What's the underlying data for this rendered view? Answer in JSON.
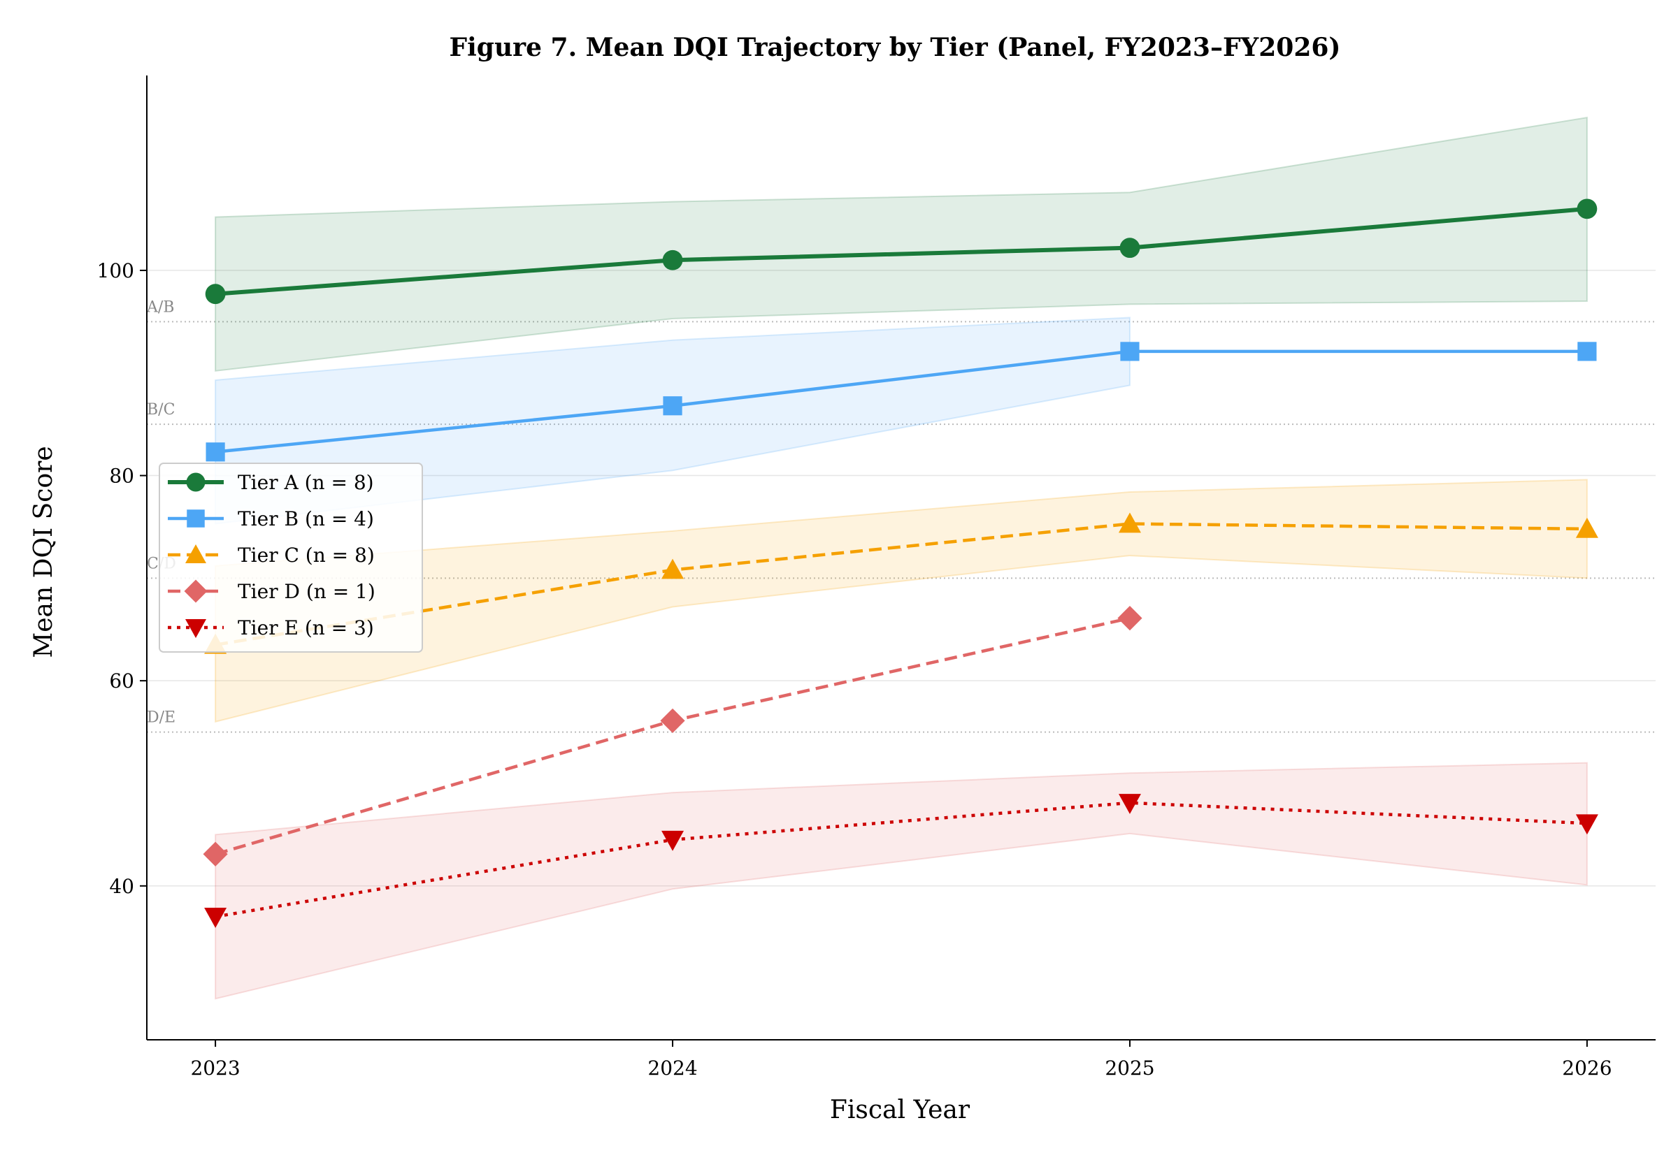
{
  "chart_data": {
    "type": "line",
    "title": "Figure 7. Mean DQI Trajectory by Tier (Panel, FY2023–FY2026)",
    "xlabel": "Fiscal Year",
    "ylabel": "Mean DQI Score",
    "x": [
      2023,
      2024,
      2025,
      2026
    ],
    "xlim": [
      2022.85,
      2026.15
    ],
    "ylim": [
      25,
      119
    ],
    "yticks": [
      40,
      60,
      80,
      100
    ],
    "grid": "horizontal",
    "legend_position": "center-left",
    "thresholds": [
      {
        "label": "A/B",
        "value": 95
      },
      {
        "label": "B/C",
        "value": 85
      },
      {
        "label": "C/D",
        "value": 70
      },
      {
        "label": "D/E",
        "value": 55
      }
    ],
    "series": [
      {
        "name": "Tier A (n = 8)",
        "color": "#1a7a3a",
        "marker": "circle",
        "dash": "solid",
        "values": [
          97.7,
          101.0,
          102.2,
          106.0
        ],
        "band_upper": [
          105.2,
          106.7,
          107.6,
          114.9
        ],
        "band_lower": [
          90.2,
          95.3,
          96.7,
          97.0
        ],
        "band_color": "#1a7a3a"
      },
      {
        "name": "Tier B (n = 4)",
        "color": "#4da6f5",
        "marker": "square",
        "dash": "solid",
        "values": [
          82.3,
          86.8,
          92.1,
          92.1
        ],
        "band_upper": [
          89.3,
          93.2,
          95.4,
          null
        ],
        "band_lower": [
          75.3,
          80.5,
          88.8,
          null
        ],
        "band_color": "#4da6f5"
      },
      {
        "name": "Tier C (n = 8)",
        "color": "#f5a000",
        "marker": "triangle-up",
        "dash": "dashed",
        "values": [
          63.5,
          70.8,
          75.3,
          74.8
        ],
        "band_upper": [
          71.2,
          74.6,
          78.4,
          79.6
        ],
        "band_lower": [
          56.0,
          67.2,
          72.2,
          70.0
        ],
        "band_color": "#f5a000"
      },
      {
        "name": "Tier D (n = 1)",
        "color": "#e06666",
        "marker": "diamond",
        "dash": "dashed",
        "values": [
          43.1,
          56.1,
          66.1,
          null
        ],
        "band_upper": null,
        "band_lower": null,
        "band_color": null
      },
      {
        "name": "Tier E (n = 3)",
        "color": "#cc0000",
        "marker": "triangle-down",
        "dash": "dotted",
        "values": [
          37.0,
          44.5,
          48.1,
          46.1
        ],
        "band_upper": [
          45.0,
          49.1,
          51.0,
          52.0
        ],
        "band_lower": [
          29.0,
          39.7,
          45.1,
          40.1
        ],
        "band_color": "#e06666"
      }
    ]
  }
}
